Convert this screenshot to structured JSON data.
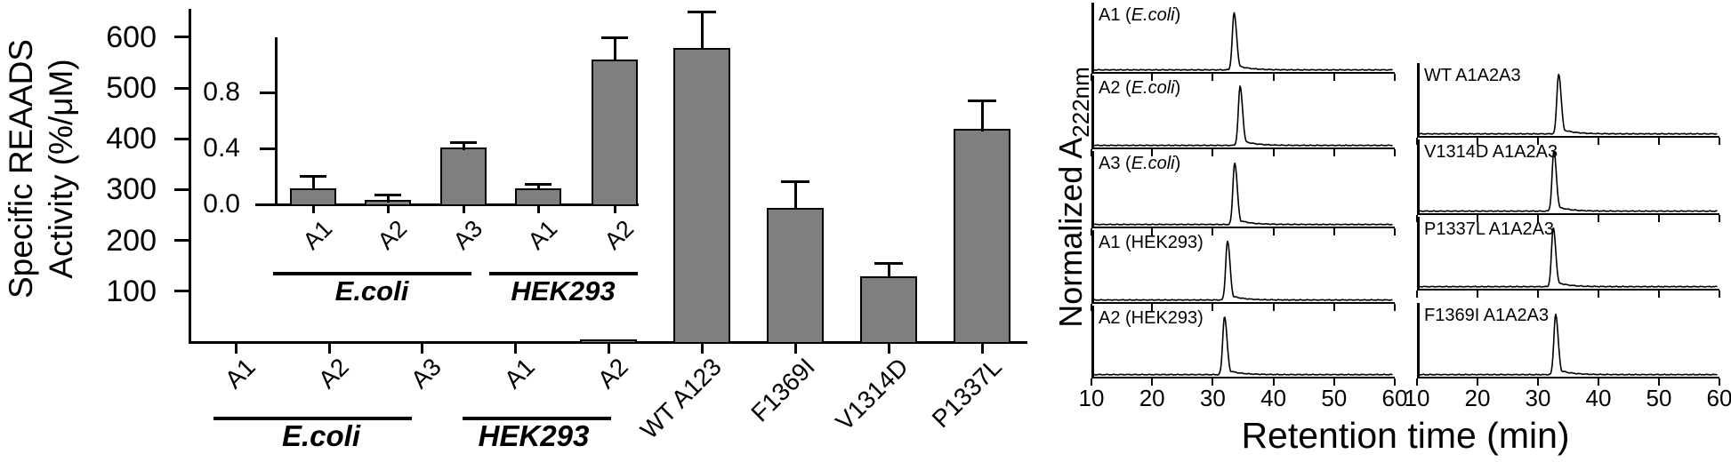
{
  "figure": {
    "background": "#ffffff",
    "axis_color": "#000000",
    "bar_fill": "#7f7f7f"
  },
  "chart_data": [
    {
      "id": "activity_bar_chart",
      "type": "bar",
      "ylabel_line1": "Specific REAADS",
      "ylabel_line2": "Activity (%/μM)",
      "ylim": [
        0,
        650
      ],
      "yticks": [
        100,
        200,
        300,
        400,
        500,
        600
      ],
      "grid": false,
      "categories": [
        "A1",
        "A2",
        "A3",
        "A1",
        "A2",
        "WT A123",
        "F1369I",
        "V1314D",
        "P1337L"
      ],
      "values": [
        0.1,
        0.02,
        0.39,
        0.1,
        1.0,
        575,
        260,
        125,
        415
      ],
      "errors_top": [
        null,
        null,
        null,
        null,
        null,
        650,
        315,
        155,
        475
      ],
      "groups": [
        {
          "label": "E.coli",
          "members": [
            "A1",
            "A2",
            "A3"
          ]
        },
        {
          "label": "HEK293",
          "members": [
            "A1",
            "A2"
          ]
        }
      ]
    },
    {
      "id": "activity_inset_zoom",
      "type": "bar",
      "ylim": [
        0,
        1.2
      ],
      "yticks": [
        0,
        0.4,
        0.8
      ],
      "ytick_labels": [
        "0.0",
        "0.4",
        "0.8"
      ],
      "categories": [
        "A1",
        "A2",
        "A3",
        "A1",
        "A2"
      ],
      "values": [
        0.1,
        0.015,
        0.39,
        0.1,
        1.02
      ],
      "errors_top": [
        0.2,
        0.065,
        0.44,
        0.14,
        1.19
      ],
      "groups": [
        {
          "label": "E.coli",
          "members": [
            "A1",
            "A2",
            "A3"
          ]
        },
        {
          "label": "HEK293",
          "members": [
            "A1",
            "A2"
          ]
        }
      ]
    },
    {
      "id": "chromatograms",
      "type": "line",
      "xlabel": "Retention time (min)",
      "ylabel_main": "Normalized A",
      "ylabel_sub": "222nm",
      "xlim": [
        10,
        60
      ],
      "xticks": [
        10,
        20,
        30,
        40,
        50,
        60
      ],
      "peak_height_norm": 0.8,
      "left_column": [
        {
          "label_pre": "A1 (",
          "label_italic": "E.coli",
          "label_post": ")",
          "peak_min": 33.5
        },
        {
          "label_pre": "A2 (",
          "label_italic": "E.coli",
          "label_post": ")",
          "peak_min": 34.5
        },
        {
          "label_pre": "A3 (",
          "label_italic": "E.coli",
          "label_post": ")",
          "peak_min": 33.6
        },
        {
          "label_pre": "A1 (HEK293)",
          "label_italic": "",
          "label_post": "",
          "peak_min": 32.4
        },
        {
          "label_pre": "A2 (HEK293)",
          "label_italic": "",
          "label_post": "",
          "peak_min": 31.9
        }
      ],
      "right_column": [
        {
          "label_pre": "WT A1A2A3",
          "label_italic": "",
          "label_post": "",
          "peak_min": 33.4
        },
        {
          "label_pre": "V1314D A1A2A3",
          "label_italic": "",
          "label_post": "",
          "peak_min": 32.6
        },
        {
          "label_pre": "P1337L A1A2A3",
          "label_italic": "",
          "label_post": "",
          "peak_min": 32.5
        },
        {
          "label_pre": "F1369I A1A2A3",
          "label_italic": "",
          "label_post": "",
          "peak_min": 32.9
        }
      ]
    }
  ]
}
